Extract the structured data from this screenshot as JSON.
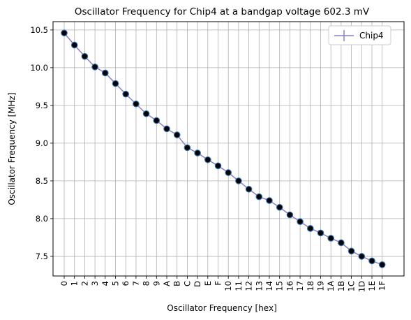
{
  "chart_data": {
    "type": "line",
    "title": "Oscillator Frequency for Chip4 at a bandgap voltage 602.3 mV",
    "xlabel": "Oscillator Frequency [hex]",
    "ylabel": "Oscillator Frequency [MHz]",
    "categories": [
      "0",
      "1",
      "2",
      "3",
      "4",
      "5",
      "6",
      "7",
      "8",
      "9",
      "A",
      "B",
      "C",
      "D",
      "E",
      "F",
      "10",
      "11",
      "12",
      "13",
      "14",
      "15",
      "16",
      "17",
      "18",
      "19",
      "1A",
      "1B",
      "1C",
      "1D",
      "1E",
      "1F"
    ],
    "series": [
      {
        "name": "Chip4",
        "values": [
          10.46,
          10.3,
          10.15,
          10.01,
          9.93,
          9.79,
          9.65,
          9.52,
          9.39,
          9.3,
          9.19,
          9.11,
          8.94,
          8.87,
          8.78,
          8.7,
          8.61,
          8.5,
          8.39,
          8.29,
          8.24,
          8.15,
          8.05,
          7.96,
          7.87,
          7.81,
          7.74,
          7.68,
          7.57,
          7.5,
          7.44,
          7.39
        ],
        "line_color": "#8c7fc8",
        "marker_color": "#000000",
        "marker_edge": "#2a6fb0"
      }
    ],
    "yticks": [
      "7.5",
      "8.0",
      "8.5",
      "9.0",
      "9.5",
      "10.0",
      "10.5"
    ],
    "ylim": [
      7.24,
      10.61
    ],
    "grid": true,
    "legend_position": "top-right"
  }
}
